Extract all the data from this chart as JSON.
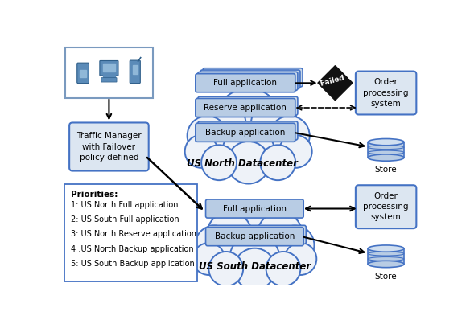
{
  "bg_color": "#ffffff",
  "cloud_fill": "#eef2f8",
  "cloud_edge": "#4472c4",
  "pill_fill": "#b8cce4",
  "pill_edge": "#4472c4",
  "box_fill": "#dce6f1",
  "box_edge": "#4472c4",
  "db_fill": "#b8cce4",
  "db_edge": "#4472c4",
  "failed_fill": "#111111",
  "failed_text": "#ffffff",
  "arrow_color": "#000000",
  "text_color": "#000000",
  "priorities_bold": "Priorities:",
  "priorities_lines": [
    "1: US North Full application",
    "2: US South Full application",
    "3: US North Reserve application",
    "4 :US North Backup application",
    "5: US South Backup application"
  ],
  "traffic_manager_text": "Traffic Manager\nwith Failover\npolicy defined",
  "us_north_label": "US North Datacenter",
  "us_south_label": "US South Datacenter",
  "full_app": "Full application",
  "reserve_app": "Reserve application",
  "backup_app": "Backup application",
  "order_proc": "Order\nprocessing\nsystem",
  "store": "Store",
  "failed_label": "Failed !"
}
